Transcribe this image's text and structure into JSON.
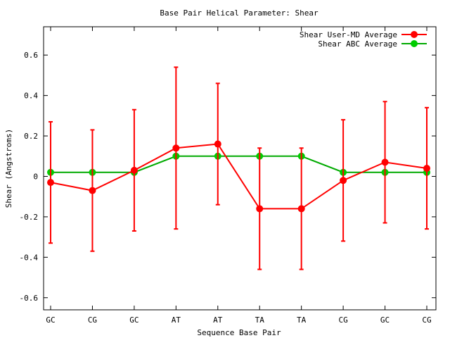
{
  "chart_data": {
    "type": "line",
    "title": "Base Pair Helical Parameter: Shear",
    "xlabel": "Sequence Base Pair",
    "ylabel": "Shear (Angstroms)",
    "categories": [
      "GC",
      "CG",
      "GC",
      "AT",
      "AT",
      "TA",
      "TA",
      "CG",
      "GC",
      "CG"
    ],
    "ylim": [
      -0.66,
      0.74
    ],
    "yticks": [
      -0.6,
      -0.4,
      -0.2,
      0,
      0.2,
      0.4,
      0.6
    ],
    "ytick_labels": [
      "-0.6",
      "-0.4",
      "-0.2",
      "0",
      "0.2",
      "0.4",
      "0.6"
    ],
    "grid": false,
    "legend_position": "top-right",
    "series": [
      {
        "name": "Shear User-MD Average",
        "color": "#ff0000",
        "marker_color": "#ff0000",
        "values": [
          -0.03,
          -0.07,
          0.03,
          0.14,
          0.16,
          -0.16,
          -0.16,
          -0.02,
          0.07,
          0.04
        ],
        "error": [
          0.3,
          0.3,
          0.3,
          0.4,
          0.3,
          0.3,
          0.3,
          0.3,
          0.3,
          0.3
        ]
      },
      {
        "name": "Shear ABC Average",
        "color": "#00aa00",
        "marker_color": "#00cc00",
        "values": [
          0.02,
          0.02,
          0.02,
          0.1,
          0.1,
          0.1,
          0.1,
          0.02,
          0.02,
          0.02
        ]
      }
    ]
  }
}
